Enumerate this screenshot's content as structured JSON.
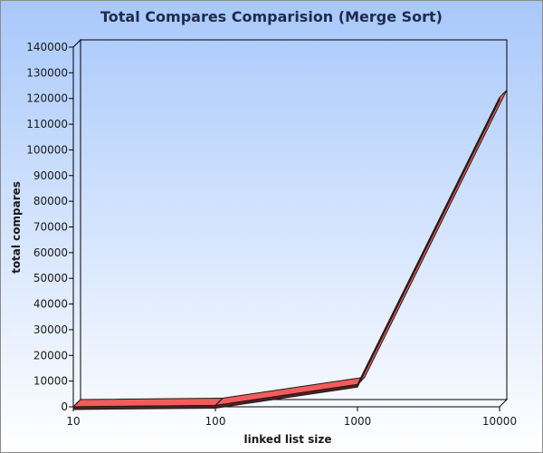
{
  "chart_data": {
    "type": "line",
    "title": "Total Compares Comparision (Merge Sort)",
    "xlabel": "linked list size",
    "ylabel": "total compares",
    "categories": [
      "10",
      "100",
      "1000",
      "10000"
    ],
    "series": [
      {
        "values": [
          22,
          542,
          8705,
          120453
        ],
        "color": "#f25c5c"
      }
    ],
    "y_ticks": [
      "0",
      "10000",
      "20000",
      "30000",
      "40000",
      "50000",
      "60000",
      "70000",
      "80000",
      "90000",
      "100000",
      "110000",
      "120000",
      "130000",
      "140000"
    ],
    "ylim": [
      0,
      140000
    ],
    "grid": false,
    "legend": "none",
    "style": "3d-ribbon"
  }
}
